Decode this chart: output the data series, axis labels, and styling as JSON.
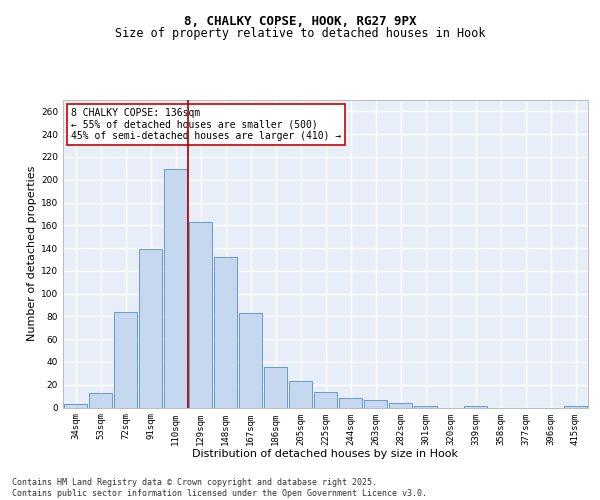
{
  "title_line1": "8, CHALKY COPSE, HOOK, RG27 9PX",
  "title_line2": "Size of property relative to detached houses in Hook",
  "xlabel": "Distribution of detached houses by size in Hook",
  "ylabel": "Number of detached properties",
  "bar_color": "#c5d8f0",
  "bar_edge_color": "#6699cc",
  "background_color": "#e8eef8",
  "grid_color": "#ffffff",
  "categories": [
    "34sqm",
    "53sqm",
    "72sqm",
    "91sqm",
    "110sqm",
    "129sqm",
    "148sqm",
    "167sqm",
    "186sqm",
    "205sqm",
    "225sqm",
    "244sqm",
    "263sqm",
    "282sqm",
    "301sqm",
    "320sqm",
    "339sqm",
    "358sqm",
    "377sqm",
    "396sqm",
    "415sqm"
  ],
  "values": [
    3,
    13,
    84,
    139,
    209,
    163,
    132,
    83,
    36,
    23,
    14,
    8,
    7,
    4,
    1,
    0,
    1,
    0,
    0,
    0,
    1
  ],
  "ylim": [
    0,
    270
  ],
  "yticks": [
    0,
    20,
    40,
    60,
    80,
    100,
    120,
    140,
    160,
    180,
    200,
    220,
    240,
    260
  ],
  "vline_x": 4.5,
  "vline_color": "#aa0000",
  "annotation_text": "8 CHALKY COPSE: 136sqm\n← 55% of detached houses are smaller (500)\n45% of semi-detached houses are larger (410) →",
  "annotation_box_color": "#cc0000",
  "footer_text": "Contains HM Land Registry data © Crown copyright and database right 2025.\nContains public sector information licensed under the Open Government Licence v3.0.",
  "title_fontsize": 9,
  "subtitle_fontsize": 8.5,
  "label_fontsize": 8,
  "tick_fontsize": 6.5,
  "annotation_fontsize": 7,
  "footer_fontsize": 6
}
